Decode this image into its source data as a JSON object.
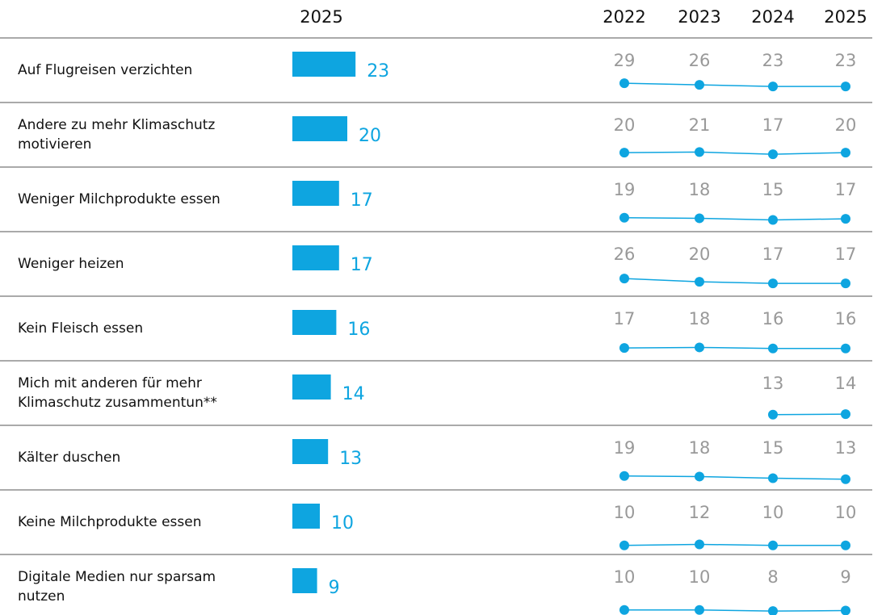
{
  "chart_data": [
    {
      "type": "bar",
      "title": "2025",
      "color": "#0ea5e0",
      "categories": [
        "Auf Flugreisen verzichten",
        "Andere zu mehr Klimaschutz\nmotivieren",
        "Weniger Milchprodukte essen",
        "Weniger heizen",
        "Kein Fleisch essen",
        "Mich mit anderen für mehr\nKlimaschutz zusammentun**",
        "Kälter duschen",
        "Keine Milchprodukte essen",
        "Digitale Medien nur sparsam\nnutzen"
      ],
      "values": [
        23,
        20,
        17,
        17,
        16,
        14,
        13,
        10,
        9
      ]
    },
    {
      "type": "line",
      "color": "#0ea5e0",
      "x": [
        "2022",
        "2023",
        "2024",
        "2025"
      ],
      "series": [
        {
          "values": [
            29,
            26,
            23,
            23
          ]
        },
        {
          "values": [
            20,
            21,
            17,
            20
          ]
        },
        {
          "values": [
            19,
            18,
            15,
            17
          ]
        },
        {
          "values": [
            26,
            20,
            17,
            17
          ]
        },
        {
          "values": [
            17,
            18,
            16,
            16
          ]
        },
        {
          "values": [
            null,
            null,
            13,
            14
          ]
        },
        {
          "values": [
            19,
            18,
            15,
            13
          ]
        },
        {
          "values": [
            10,
            12,
            10,
            10
          ]
        },
        {
          "values": [
            10,
            10,
            8,
            9
          ]
        }
      ]
    }
  ]
}
